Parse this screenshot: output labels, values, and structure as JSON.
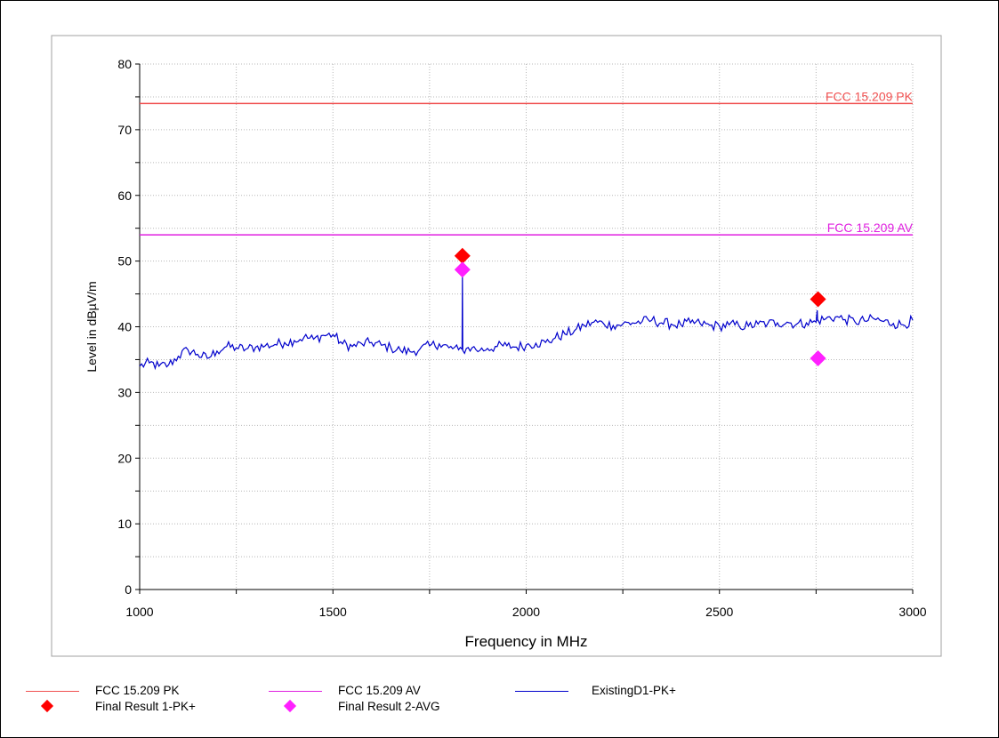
{
  "chart_data": {
    "type": "line",
    "xlabel": "Frequency in MHz",
    "ylabel": "Level in dBµV/m",
    "xlim": [
      1000,
      3000
    ],
    "ylim": [
      0,
      80
    ],
    "x_ticks": [
      1000,
      1500,
      2000,
      2500,
      3000
    ],
    "y_ticks": [
      0,
      10,
      20,
      30,
      40,
      50,
      60,
      70,
      80
    ],
    "grid": true,
    "limit_lines": [
      {
        "name": "FCC 15.209 PK",
        "value": 74,
        "color": "#f05050"
      },
      {
        "name": "FCC 15.209 AV",
        "value": 54,
        "color": "#e020e0"
      }
    ],
    "series": [
      {
        "name": "ExistingD1-PK+",
        "color": "#0000cc",
        "x": [
          1000,
          1025,
          1050,
          1075,
          1100,
          1125,
          1150,
          1175,
          1200,
          1225,
          1250,
          1275,
          1300,
          1325,
          1350,
          1375,
          1400,
          1425,
          1450,
          1475,
          1500,
          1525,
          1550,
          1575,
          1600,
          1625,
          1650,
          1675,
          1700,
          1725,
          1750,
          1775,
          1800,
          1825,
          1834,
          1835,
          1836,
          1845,
          1860,
          1880,
          1900,
          1925,
          1950,
          1975,
          2000,
          2025,
          2050,
          2075,
          2100,
          2125,
          2150,
          2175,
          2200,
          2225,
          2250,
          2275,
          2300,
          2325,
          2350,
          2375,
          2400,
          2425,
          2450,
          2475,
          2500,
          2525,
          2550,
          2575,
          2600,
          2625,
          2650,
          2675,
          2700,
          2725,
          2750,
          2753,
          2754,
          2755,
          2775,
          2800,
          2825,
          2850,
          2875,
          2900,
          2925,
          2950,
          2975,
          3000
        ],
        "y": [
          34,
          34.5,
          34,
          34.2,
          35.5,
          36.5,
          35.8,
          35.2,
          36.3,
          37,
          36.8,
          36.6,
          36.9,
          37.1,
          37.3,
          37.6,
          37.9,
          38.4,
          38.1,
          38.7,
          38.8,
          37.4,
          37,
          37.4,
          37.6,
          37.2,
          36.8,
          36.4,
          36.2,
          36.6,
          37.1,
          37.4,
          36.8,
          36.5,
          36.6,
          48.2,
          36.4,
          36.7,
          36.8,
          36.4,
          36.7,
          37,
          37.1,
          36.9,
          37.2,
          37.5,
          37.6,
          38.3,
          38.9,
          39.4,
          40.2,
          40.7,
          40.5,
          40.2,
          40.4,
          40.6,
          40.8,
          41,
          40.6,
          40.4,
          40.3,
          40.6,
          40.5,
          40.2,
          40.1,
          40.3,
          40.2,
          40.1,
          40.4,
          40.5,
          40.6,
          40.7,
          40.4,
          40.6,
          40.7,
          42.5,
          40.9,
          41,
          41.2,
          41.5,
          41.1,
          40.8,
          40.9,
          41.2,
          40.8,
          40.5,
          40.3,
          41
        ]
      }
    ],
    "markers": [
      {
        "name": "Final Result 1-PK+",
        "color": "#ff0000",
        "points": [
          [
            1835,
            50.8
          ],
          [
            2755,
            44.2
          ]
        ]
      },
      {
        "name": "Final Result 2-AVG",
        "color": "#ff20ff",
        "points": [
          [
            1835,
            48.7
          ],
          [
            2755,
            35.2
          ]
        ]
      }
    ],
    "legend_position": "bottom"
  }
}
